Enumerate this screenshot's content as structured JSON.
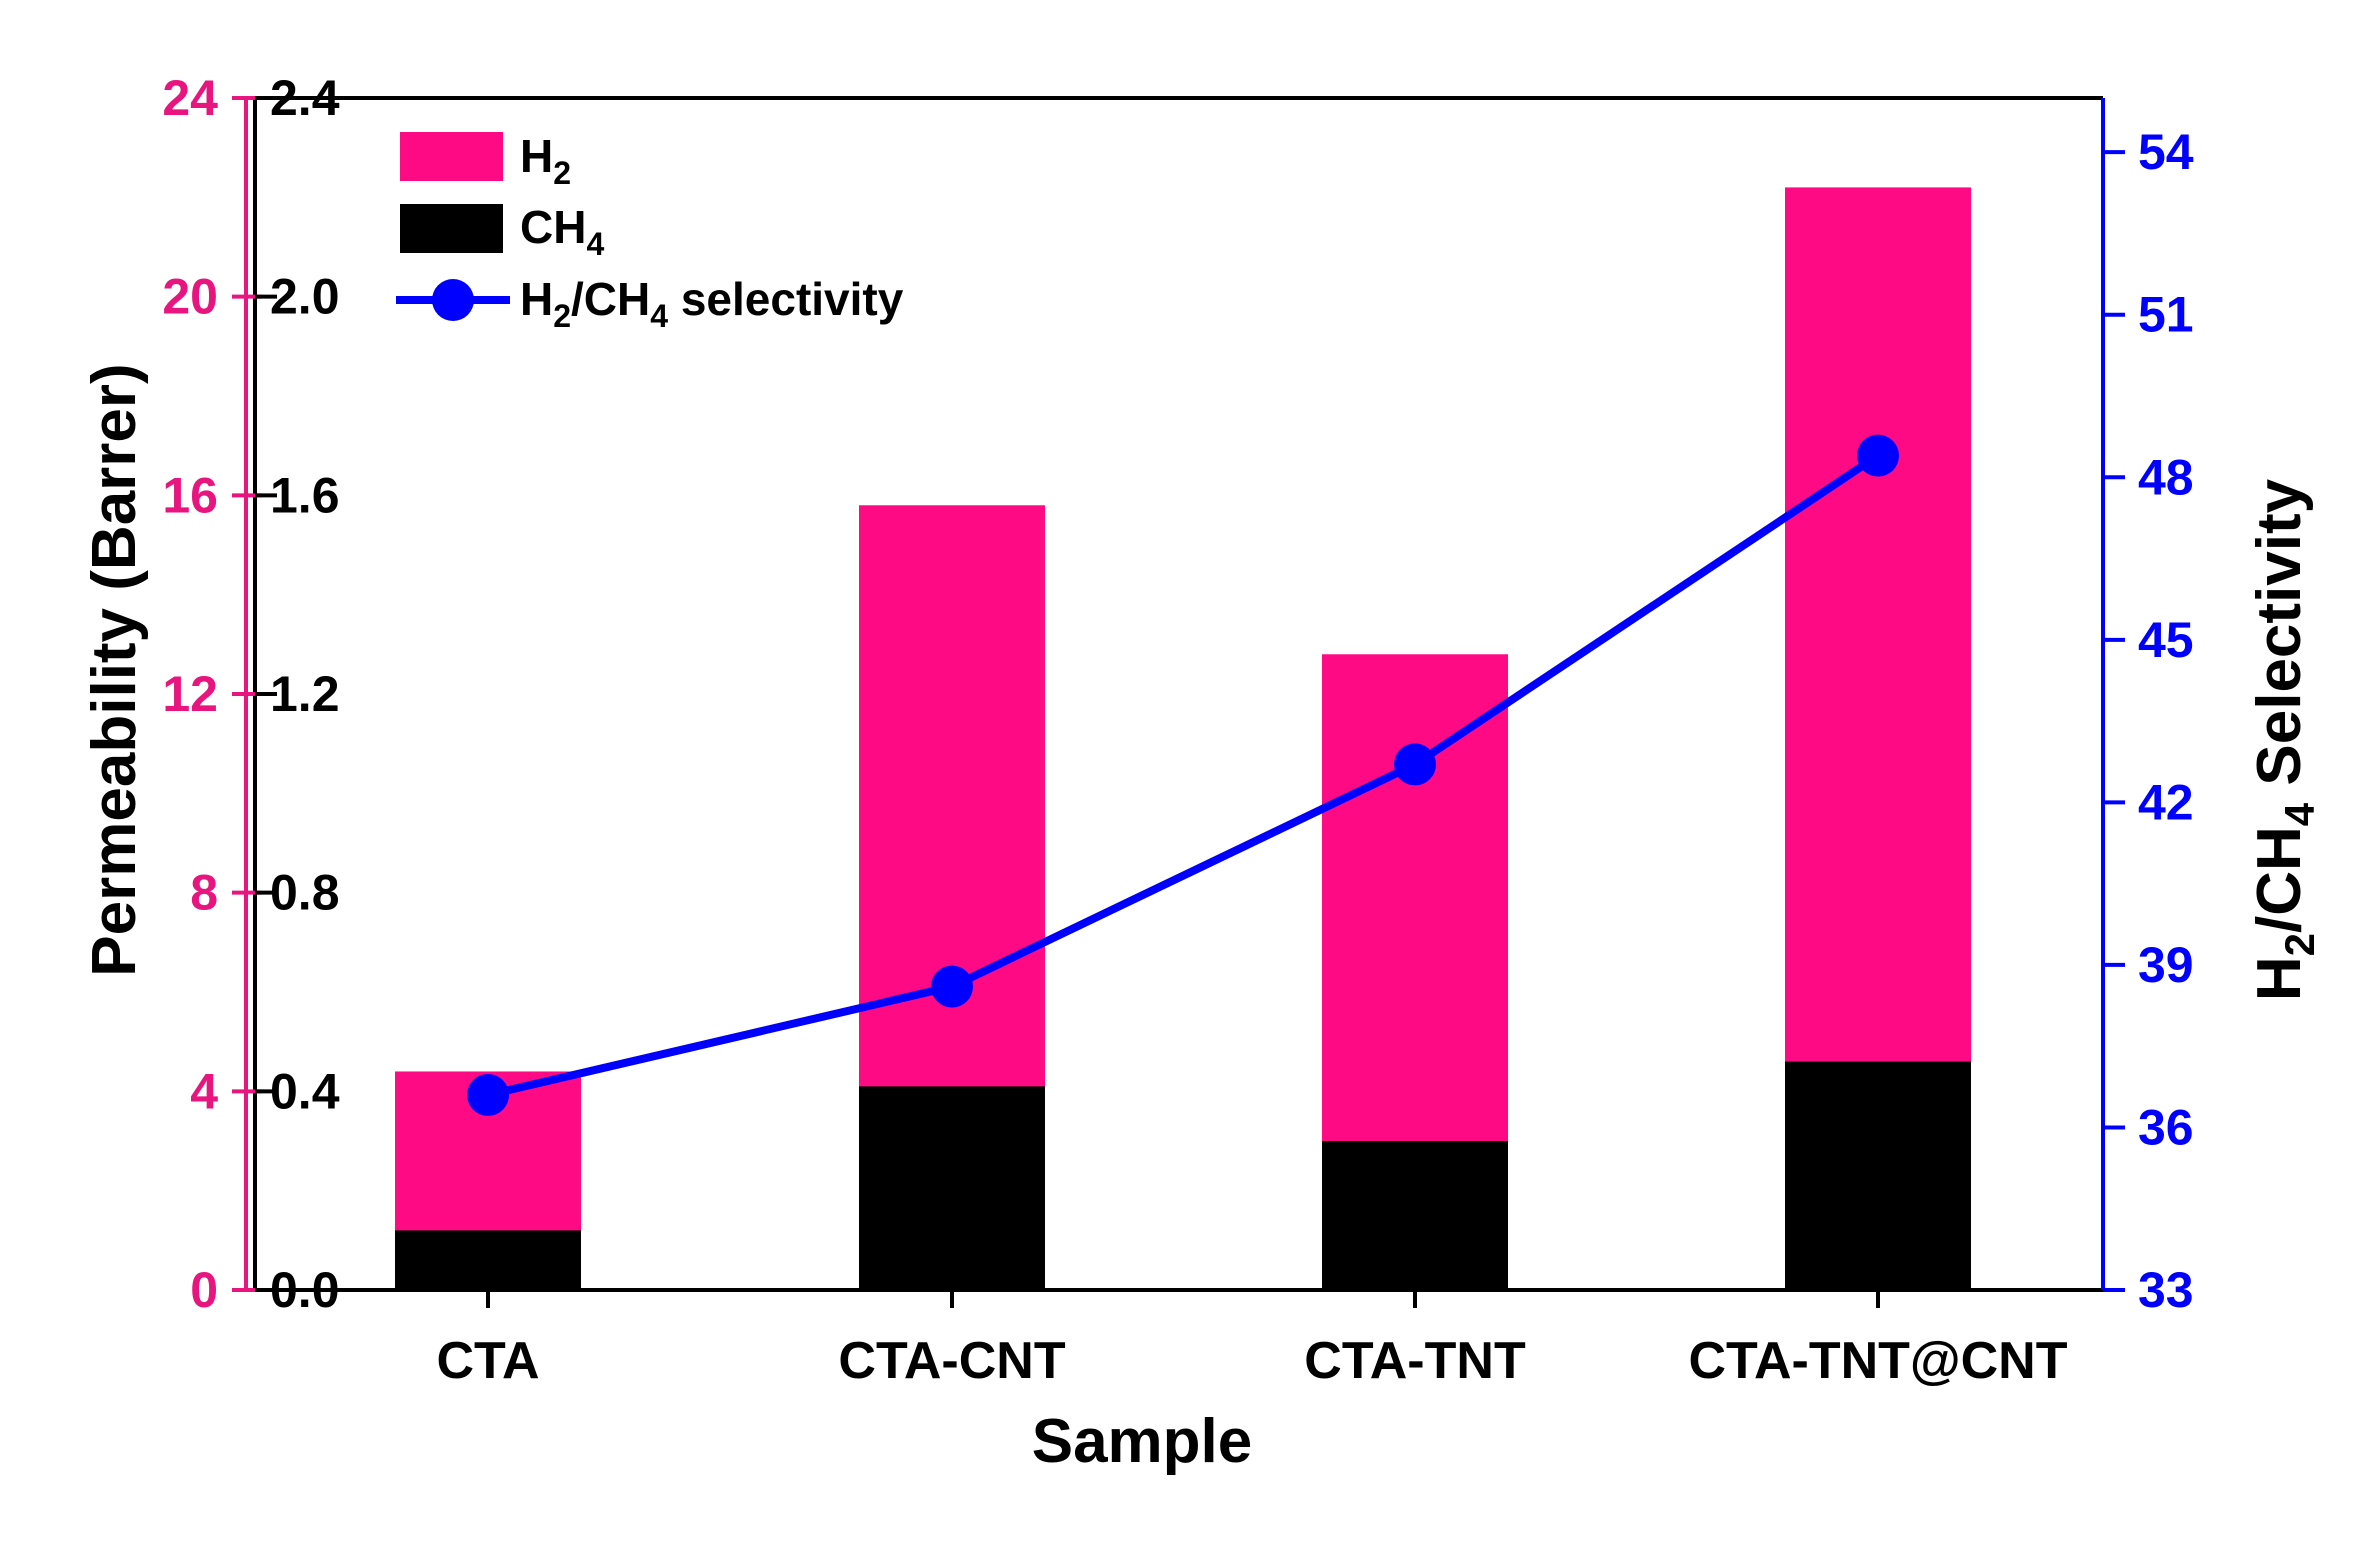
{
  "chart_data": {
    "type": "bar",
    "stacked": true,
    "xlabel": "Sample",
    "categories": [
      "CTA",
      "CTA-CNT",
      "CTA-TNT",
      "CTA-TNT@CNT"
    ],
    "series": [
      {
        "name": "CH4",
        "axis": "inner-left",
        "color": "#000000",
        "values": [
          0.12,
          0.41,
          0.3,
          0.46
        ]
      },
      {
        "name": "H2",
        "axis": "outer-left",
        "color": "#ff0a85",
        "values": [
          4.4,
          15.8,
          12.8,
          22.2
        ]
      },
      {
        "name": "H2/CH4 selectivity",
        "type": "line",
        "axis": "right",
        "color": "#0000ff",
        "values": [
          36.6,
          38.6,
          42.7,
          48.4
        ]
      }
    ],
    "legend": {
      "position": "top-left",
      "h2": {
        "main": "H",
        "sub": "2"
      },
      "ch4": {
        "main": "CH",
        "sub": "4"
      },
      "sel": {
        "a": "H",
        "b": "2",
        "c": "/CH",
        "d": "4",
        "e": " selectivity"
      }
    },
    "axes": {
      "outer_left": {
        "color": "#e8157f",
        "range": [
          0,
          24
        ],
        "ticks": [
          "0",
          "4",
          "8",
          "12",
          "16",
          "20",
          "24"
        ]
      },
      "inner_left": {
        "color": "#000000",
        "range": [
          0,
          2.4
        ],
        "ticks": [
          "0.0",
          "0.4",
          "0.8",
          "1.2",
          "1.6",
          "2.0",
          "2.4"
        ],
        "title": "Permeability (Barrer)"
      },
      "right": {
        "color": "#0000ff",
        "range": [
          33,
          55
        ],
        "ticks": [
          "33",
          "36",
          "39",
          "42",
          "45",
          "48",
          "51",
          "54"
        ],
        "title": {
          "a": "H",
          "b": "2",
          "c": "/CH",
          "d": "4",
          "e": " Selectivity"
        }
      }
    },
    "colors": {
      "h2": "#ff0a85",
      "ch4": "#000000",
      "line": "#0000ff",
      "pink_axis": "#e8157f",
      "blue_axis": "#0000ff"
    }
  }
}
